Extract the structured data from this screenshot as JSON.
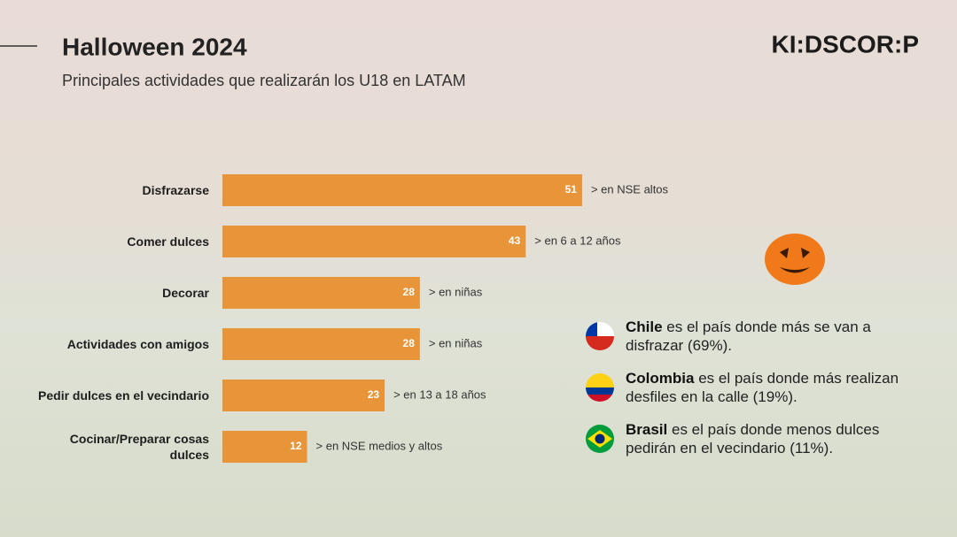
{
  "header": {
    "title": "Halloween 2024",
    "subtitle": "Principales actividades que realizarán los U18 en LATAM",
    "logo": "KI:DSCOR:P"
  },
  "chart_data": {
    "type": "bar",
    "orientation": "horizontal",
    "color": "#e8953a",
    "categories": [
      "Disfrazarse",
      "Comer dulces",
      "Decorar",
      "Actividades con amigos",
      "Pedir dulces en el vecindario",
      "Cocinar/Preparar cosas dulces"
    ],
    "values": [
      51,
      43,
      28,
      28,
      23,
      12
    ],
    "annotations": [
      "> en NSE altos",
      "> en 6 a 12 años",
      "> en niñas",
      "> en niñas",
      "> en 13 a 18 años",
      "> en NSE medios y altos"
    ]
  },
  "notes": [
    {
      "country": "Chile",
      "text": "es el país donde más se van a disfrazar (69%)."
    },
    {
      "country": "Colombia",
      "text": "es el país donde más realizan desfiles en la calle (19%)."
    },
    {
      "country": "Brasil",
      "text": "es el país donde menos dulces pedirán en el vecindario (11%)."
    }
  ]
}
